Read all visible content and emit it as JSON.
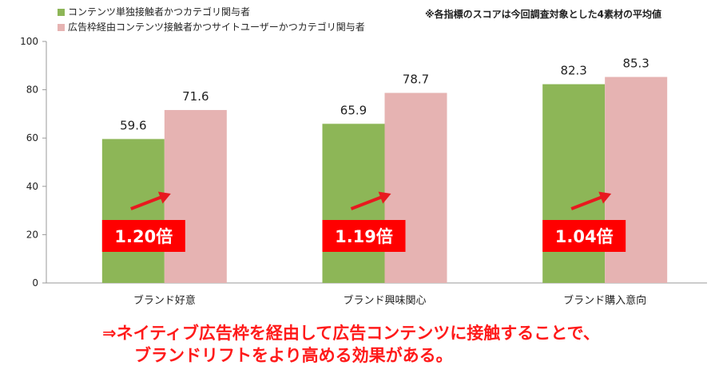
{
  "colors": {
    "series1": "#8db657",
    "series2": "#e6b3b2",
    "arrow": "#e8191f",
    "ratio_box": "#ff0000",
    "axis": "#999999",
    "conclusion": "#ff1a1a"
  },
  "legend": [
    "コンテンツ単独接触者かつカテゴリ関与者",
    "広告枠経由コンテンツ接触者かつサイトユーザーかつカテゴリ関与者"
  ],
  "note": "※各指標のスコアは今回調査対象とした4素材の平均値",
  "chart_data": {
    "type": "bar",
    "categories": [
      "ブランド好意",
      "ブランド興味関心",
      "ブランド購入意向"
    ],
    "series": [
      {
        "name": "コンテンツ単独接触者かつカテゴリ関与者",
        "values": [
          59.6,
          65.9,
          82.3
        ]
      },
      {
        "name": "広告枠経由コンテンツ接触者かつサイトユーザーかつカテゴリ関与者",
        "values": [
          71.6,
          78.7,
          85.3
        ]
      }
    ],
    "ylim": [
      0,
      100
    ],
    "yticks": [
      0,
      20,
      40,
      60,
      80,
      100
    ],
    "value_labels": [
      "59.6",
      "71.6",
      "65.9",
      "78.7",
      "82.3",
      "85.3"
    ],
    "annotations": [
      "1.20倍",
      "1.19倍",
      "1.04倍"
    ],
    "legend_position": "top-left",
    "grid": false
  },
  "conclusion": {
    "line1": "⇒ネイティブ広告枠を経由して広告コンテンツに接触することで、",
    "line2": "ブランドリフトをより高める効果がある。"
  }
}
